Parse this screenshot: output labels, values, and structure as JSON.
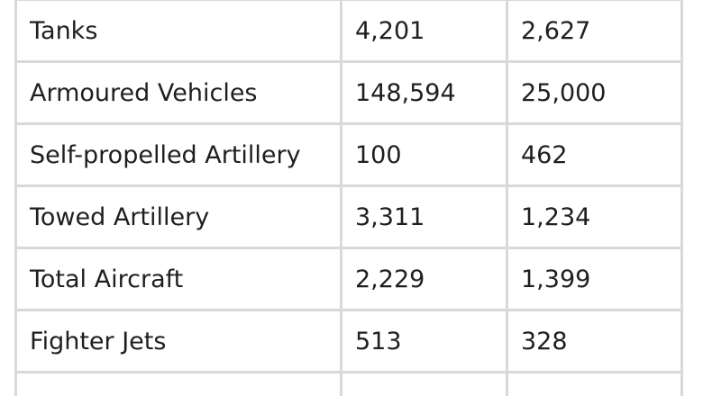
{
  "table": {
    "rows": [
      {
        "label": "Tanks",
        "col1": "4,201",
        "col2": "2,627"
      },
      {
        "label": "Armoured Vehicles",
        "col1": "148,594",
        "col2": "25,000"
      },
      {
        "label": "Self-propelled Artillery",
        "col1": "100",
        "col2": "462"
      },
      {
        "label": "Towed Artillery",
        "col1": "3,311",
        "col2": "1,234"
      },
      {
        "label": "Total Aircraft",
        "col1": "2,229",
        "col2": "1,399"
      },
      {
        "label": "Fighter Jets",
        "col1": "513",
        "col2": "328"
      }
    ]
  }
}
